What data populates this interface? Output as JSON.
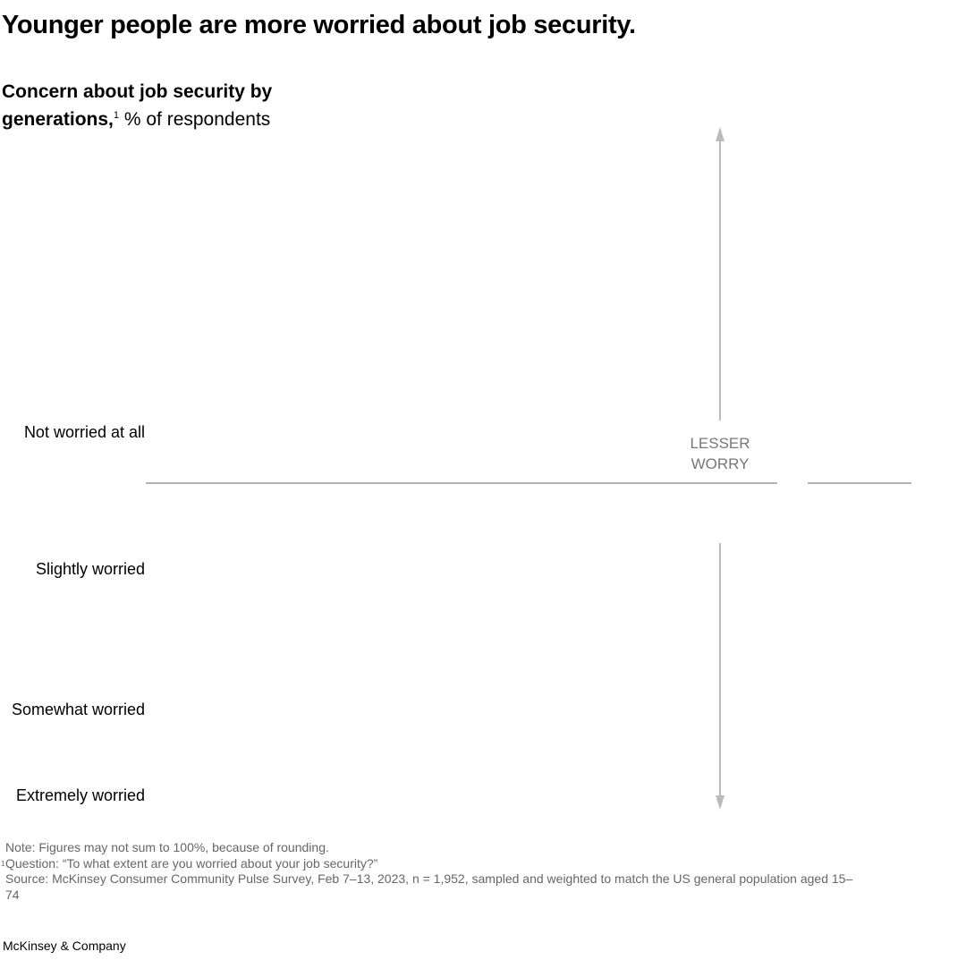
{
  "header": {
    "title": "Younger people are more worried about job security.",
    "subtitle_bold": "Concern about job security by generations,",
    "subtitle_footnote": "1",
    "subtitle_unit": "% of respondents"
  },
  "rows": [
    "Not worried at all",
    "Slightly worried",
    "Somewhat worried",
    "Extremely worried"
  ],
  "annotation": [
    "LESSER",
    "WORRY"
  ],
  "notes": {
    "note": "Note: Figures may not sum to 100%, because of rounding.",
    "question_marker": "1",
    "question": "Question: “To what extent are you worried about your job security?”",
    "source": "Source: McKinsey Consumer Community Pulse Survey, Feb 7–13, 2023, n = 1,952, sampled and weighted to match the US general population aged 15–74"
  },
  "footer": "McKinsey & Company"
}
